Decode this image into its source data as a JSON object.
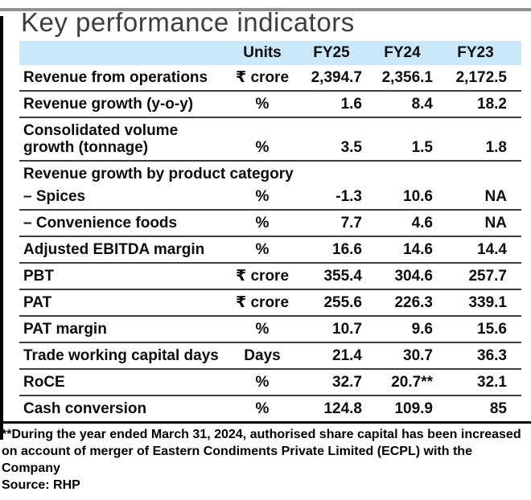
{
  "title": "Key performance indicators",
  "accent": {
    "top_bar_color": "#8f8f8f",
    "left_bar_color": "#000000",
    "header_bg": "#c9e8f9",
    "thin_rule_color": "#3f3f3f",
    "thick_rule_color": "#000000"
  },
  "table": {
    "headers": {
      "metric": "",
      "units": "Units",
      "fy25": "FY25",
      "fy24": "FY24",
      "fy23": "FY23"
    },
    "rows": [
      {
        "label": "Revenue from operations",
        "unit": "₹ crore",
        "fy25": "2,394.7",
        "fy24": "2,356.1",
        "fy23": "2,172.5"
      },
      {
        "label": "Revenue growth (y-o-y)",
        "unit": "%",
        "fy25": "1.6",
        "fy24": "8.4",
        "fy23": "18.2"
      },
      {
        "label": "Consolidated volume\ngrowth (tonnage)",
        "unit": "%",
        "fy25": "3.5",
        "fy24": "1.5",
        "fy23": "1.8"
      },
      {
        "label": "Revenue growth by product category",
        "section": true
      },
      {
        "label": "– Spices",
        "unit": "%",
        "fy25": "-1.3",
        "fy24": "10.6",
        "fy23": "NA"
      },
      {
        "label": "– Convenience foods",
        "unit": "%",
        "fy25": "7.7",
        "fy24": "4.6",
        "fy23": "NA"
      },
      {
        "label": "Adjusted EBITDA margin",
        "unit": "%",
        "fy25": "16.6",
        "fy24": "14.6",
        "fy23": "14.4"
      },
      {
        "label": "PBT",
        "unit": "₹ crore",
        "fy25": "355.4",
        "fy24": "304.6",
        "fy23": "257.7"
      },
      {
        "label": "PAT",
        "unit": "₹ crore",
        "fy25": "255.6",
        "fy24": "226.3",
        "fy23": "339.1"
      },
      {
        "label": "PAT margin",
        "unit": "%",
        "fy25": "10.7",
        "fy24": "9.6",
        "fy23": "15.6"
      },
      {
        "label": "Trade working capital days",
        "unit": "Days",
        "fy25": "21.4",
        "fy24": "30.7",
        "fy23": "36.3"
      },
      {
        "label": "RoCE",
        "unit": "%",
        "fy25": "32.7",
        "fy24": "20.7**",
        "fy23": "32.1"
      },
      {
        "label": "Cash conversion",
        "unit": "%",
        "fy25": "124.8",
        "fy24": "109.9",
        "fy23": "85"
      }
    ]
  },
  "footnote": "**During the year ended March 31, 2024, authorised share capital has been increased on account of merger of Eastern Condiments Private Limited (ECPL) with the Company",
  "source": "Source: RHP",
  "chart_data": {
    "type": "table",
    "title": "Key performance indicators",
    "columns": [
      "Metric",
      "Units",
      "FY25",
      "FY24",
      "FY23"
    ],
    "rows": [
      [
        "Revenue from operations",
        "₹ crore",
        "2,394.7",
        "2,356.1",
        "2,172.5"
      ],
      [
        "Revenue growth (y-o-y)",
        "%",
        "1.6",
        "8.4",
        "18.2"
      ],
      [
        "Consolidated volume growth (tonnage)",
        "%",
        "3.5",
        "1.5",
        "1.8"
      ],
      [
        "Revenue growth by product category",
        "",
        "",
        "",
        ""
      ],
      [
        "– Spices",
        "%",
        "-1.3",
        "10.6",
        "NA"
      ],
      [
        "– Convenience foods",
        "%",
        "7.7",
        "4.6",
        "NA"
      ],
      [
        "Adjusted EBITDA margin",
        "%",
        "16.6",
        "14.6",
        "14.4"
      ],
      [
        "PBT",
        "₹ crore",
        "355.4",
        "304.6",
        "257.7"
      ],
      [
        "PAT",
        "₹ crore",
        "255.6",
        "226.3",
        "339.1"
      ],
      [
        "PAT margin",
        "%",
        "10.7",
        "9.6",
        "15.6"
      ],
      [
        "Trade working capital days",
        "Days",
        "21.4",
        "30.7",
        "36.3"
      ],
      [
        "RoCE",
        "%",
        "32.7",
        "20.7**",
        "32.1"
      ],
      [
        "Cash conversion",
        "%",
        "124.8",
        "109.9",
        "85"
      ]
    ],
    "footnote": "**During the year ended March 31, 2024, authorised share capital has been increased on account of merger of Eastern Condiments Private Limited (ECPL) with the Company",
    "source": "RHP"
  }
}
